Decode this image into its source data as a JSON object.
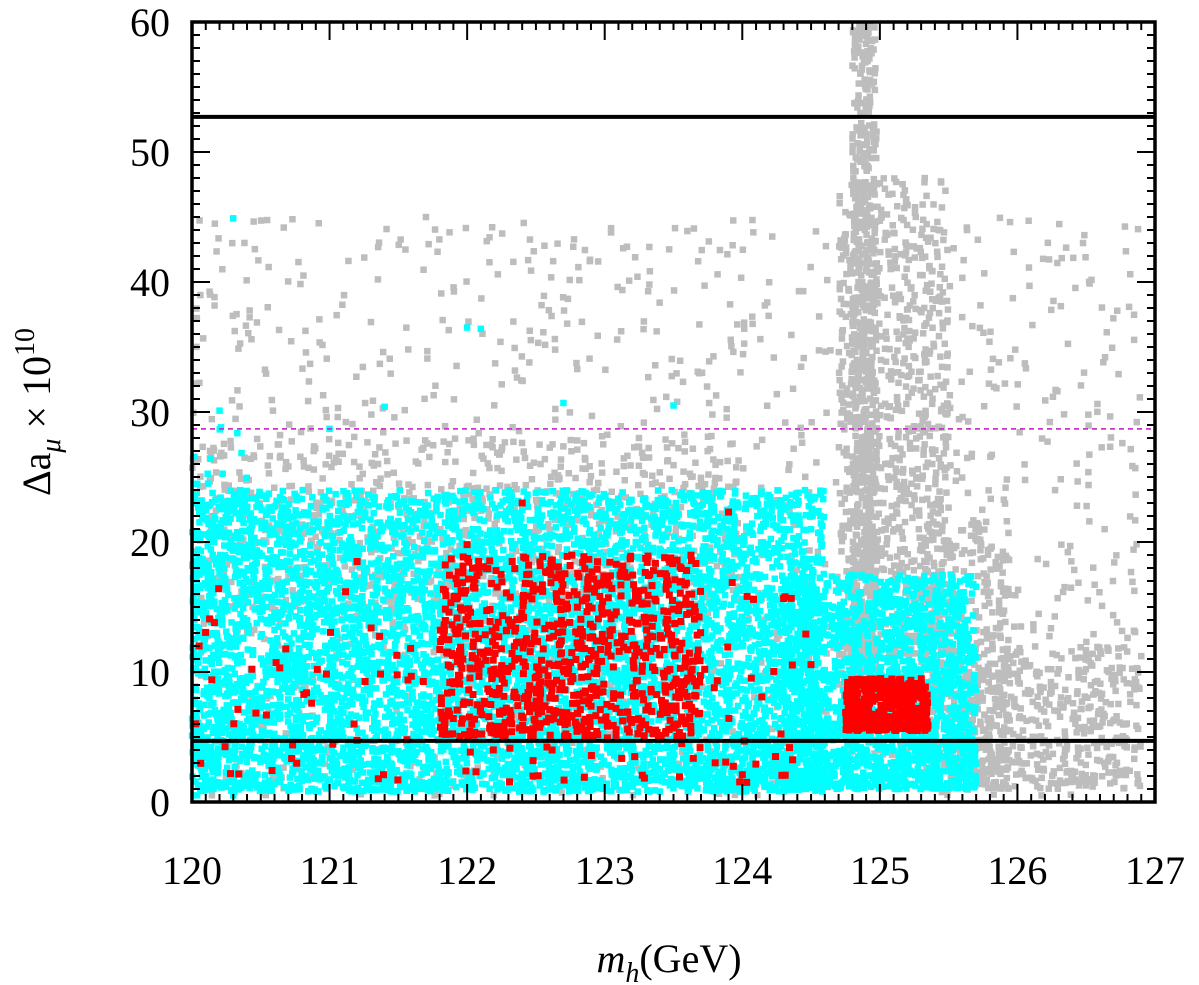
{
  "chart_data": {
    "type": "scatter",
    "title": "",
    "xlabel": {
      "var": "m",
      "sub": "h",
      "unit": "(GeV)"
    },
    "ylabel": {
      "var": "Δa",
      "sub": "μ",
      "times": " × 10",
      "sup": "10"
    },
    "xlim": [
      120,
      127
    ],
    "ylim": [
      0,
      60
    ],
    "x_ticks": [
      120,
      121,
      122,
      123,
      124,
      125,
      126,
      127
    ],
    "y_ticks": [
      0,
      10,
      20,
      30,
      40,
      50,
      60
    ],
    "grid": false,
    "legend": "none",
    "colors": {
      "gray": "#bdbdbd",
      "cyan": "#00ffff",
      "red": "#ff0000",
      "limit": "#000000",
      "dashed": "#cc33cc"
    },
    "reference_lines": [
      {
        "name": "upper-bound",
        "y": 52.7,
        "style": "solid",
        "color": "#000000"
      },
      {
        "name": "central-value",
        "y": 28.7,
        "style": "dashed",
        "color": "#cc33cc"
      },
      {
        "name": "lower-bound",
        "y": 4.7,
        "style": "solid",
        "color": "#000000"
      }
    ],
    "series": [
      {
        "color": "#bdbdbd",
        "regions": [
          {
            "x": [
              120.0,
              126.9
            ],
            "y": [
              0.5,
              45
            ],
            "count": 1400
          },
          {
            "x": [
              124.8,
              124.98
            ],
            "y": [
              10,
              60
            ],
            "count": 700
          },
          {
            "x": [
              124.7,
              125.5
            ],
            "y": [
              8,
              48
            ],
            "count": 900
          },
          {
            "x": [
              125.3,
              125.95
            ],
            "y": [
              2,
              22
            ],
            "count": 400
          },
          {
            "x": [
              125.5,
              126.9
            ],
            "y": [
              1,
              12
            ],
            "count": 450
          },
          {
            "x": [
              120.0,
              124.0
            ],
            "y": [
              15,
              28
            ],
            "count": 700
          }
        ]
      },
      {
        "color": "#00ffff",
        "regions": [
          {
            "x": [
              120.0,
              124.6
            ],
            "y": [
              0.8,
              24
            ],
            "count": 6500
          },
          {
            "x": [
              124.3,
              125.7
            ],
            "y": [
              1,
              17.5
            ],
            "count": 1800
          },
          {
            "x": [
              120.0,
              120.4
            ],
            "y": [
              0.5,
              30
            ],
            "count": 80
          }
        ],
        "outliers": [
          [
            120.3,
            44.9
          ],
          [
            122.0,
            36.5
          ],
          [
            122.1,
            36.4
          ],
          [
            120.2,
            30.1
          ],
          [
            121.4,
            30.4
          ],
          [
            121.0,
            28.7
          ],
          [
            122.7,
            30.7
          ],
          [
            123.5,
            30.5
          ]
        ]
      },
      {
        "color": "#ff0000",
        "regions": [
          {
            "x": [
              121.8,
              123.7
            ],
            "y": [
              5,
              19
            ],
            "count": 800
          },
          {
            "x": [
              124.75,
              125.35
            ],
            "y": [
              5.5,
              9.5
            ],
            "count": 450
          },
          {
            "x": [
              120.0,
              124.5
            ],
            "y": [
              1.5,
              17
            ],
            "count": 160
          }
        ],
        "outliers": [
          [
            122.4,
            23.0
          ],
          [
            123.9,
            22.3
          ],
          [
            122.0,
            19.8
          ],
          [
            121.2,
            18.5
          ]
        ]
      }
    ]
  }
}
